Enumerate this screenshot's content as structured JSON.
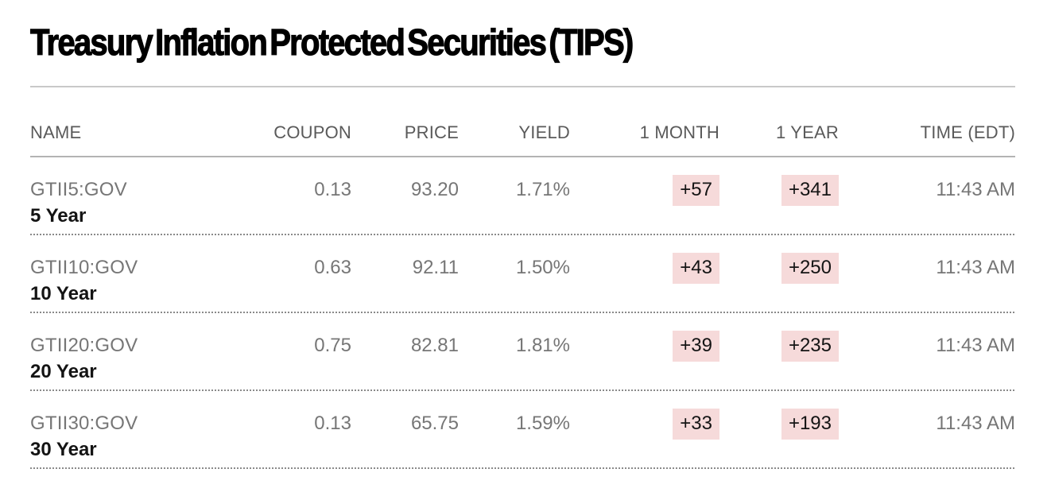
{
  "title": "Treasury Inflation Protected Securities (TIPS)",
  "table": {
    "headers": {
      "name": "NAME",
      "coupon": "COUPON",
      "price": "PRICE",
      "yield": "YIELD",
      "one_month": "1 MONTH",
      "one_year": "1 YEAR",
      "time": "TIME (EDT)"
    },
    "rows": [
      {
        "ticker": "GTII5:GOV",
        "name": "5 Year",
        "coupon": "0.13",
        "price": "93.20",
        "yield": "1.71%",
        "one_month": "+57",
        "one_year": "+341",
        "time": "11:43 AM"
      },
      {
        "ticker": "GTII10:GOV",
        "name": "10 Year",
        "coupon": "0.63",
        "price": "92.11",
        "yield": "1.50%",
        "one_month": "+43",
        "one_year": "+250",
        "time": "11:43 AM"
      },
      {
        "ticker": "GTII20:GOV",
        "name": "20 Year",
        "coupon": "0.75",
        "price": "82.81",
        "yield": "1.81%",
        "one_month": "+39",
        "one_year": "+235",
        "time": "11:43 AM"
      },
      {
        "ticker": "GTII30:GOV",
        "name": "30 Year",
        "coupon": "0.13",
        "price": "65.75",
        "yield": "1.59%",
        "one_month": "+33",
        "one_year": "+193",
        "time": "11:43 AM"
      }
    ]
  },
  "colors": {
    "positive_change_bg": "#f6dada",
    "change_text": "#141414",
    "muted_text": "#767676",
    "header_text": "#5a5a5a"
  }
}
